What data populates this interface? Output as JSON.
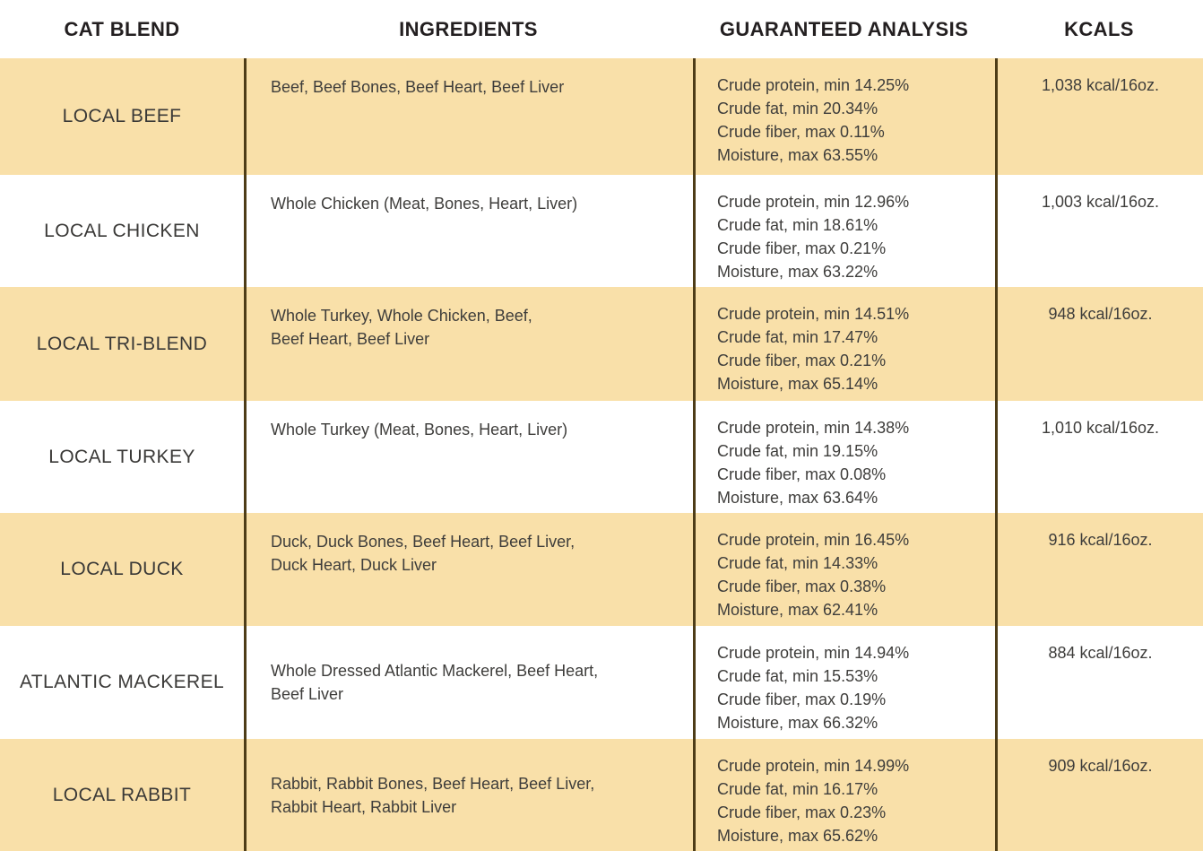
{
  "table": {
    "headers": [
      "CAT BLEND",
      "INGREDIENTS",
      "GUARANTEED ANALYSIS",
      "KCALS"
    ],
    "rows": [
      {
        "blend": "LOCAL BEEF",
        "ingredients": "Beef, Beef Bones, Beef Heart, Beef Liver",
        "analysis": "Crude protein, min 14.25%\nCrude fat, min 20.34%\nCrude fiber, max 0.11%\nMoisture, max 63.55%",
        "kcals": "1,038 kcal/16oz."
      },
      {
        "blend": "LOCAL CHICKEN",
        "ingredients": "Whole Chicken (Meat, Bones, Heart, Liver)",
        "analysis": "Crude protein, min 12.96%\nCrude fat, min 18.61%\nCrude fiber, max 0.21%\nMoisture, max 63.22%",
        "kcals": "1,003 kcal/16oz."
      },
      {
        "blend": "LOCAL TRI-BLEND",
        "ingredients": "Whole Turkey, Whole Chicken, Beef,\nBeef Heart, Beef Liver",
        "analysis": "Crude protein, min 14.51%\nCrude fat, min 17.47%\nCrude fiber, max 0.21%\nMoisture, max 65.14%",
        "kcals": "948 kcal/16oz."
      },
      {
        "blend": "LOCAL TURKEY",
        "ingredients": "Whole Turkey (Meat, Bones, Heart, Liver)",
        "analysis": "Crude protein, min 14.38%\nCrude fat, min 19.15%\nCrude fiber, max 0.08%\nMoisture, max 63.64%",
        "kcals": "1,010 kcal/16oz."
      },
      {
        "blend": "LOCAL DUCK",
        "ingredients": "Duck, Duck Bones, Beef Heart, Beef Liver,\nDuck Heart, Duck Liver",
        "analysis": "Crude protein, min 16.45%\nCrude fat, min 14.33%\nCrude fiber, max 0.38%\nMoisture, max 62.41%",
        "kcals": "916 kcal/16oz."
      },
      {
        "blend": "ATLANTIC MACKEREL",
        "ingredients": "Whole Dressed Atlantic Mackerel, Beef Heart,\nBeef Liver",
        "analysis": "Crude protein, min 14.94%\nCrude fat, min 15.53%\nCrude fiber, max 0.19%\nMoisture, max 66.32%",
        "kcals": "884 kcal/16oz."
      },
      {
        "blend": "LOCAL RABBIT",
        "ingredients": "Rabbit, Rabbit Bones, Beef Heart, Beef Liver,\nRabbit Heart, Rabbit Liver",
        "analysis": "Crude protein, min 14.99%\nCrude fat, min 16.17%\nCrude fiber, max 0.23%\nMoisture, max 65.62%",
        "kcals": "909 kcal/16oz."
      }
    ],
    "colors": {
      "row_highlight": "#f9e0a9",
      "column_divider": "#4e3d18",
      "header_text": "#231f20",
      "body_text": "#3e3d3b"
    }
  }
}
